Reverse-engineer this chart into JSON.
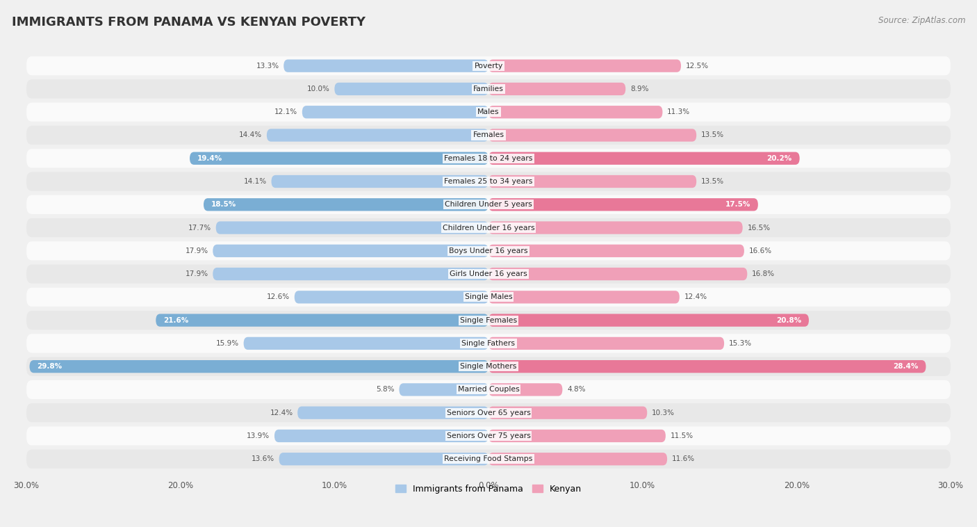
{
  "title": "IMMIGRANTS FROM PANAMA VS KENYAN POVERTY",
  "source": "Source: ZipAtlas.com",
  "categories": [
    "Poverty",
    "Families",
    "Males",
    "Females",
    "Females 18 to 24 years",
    "Females 25 to 34 years",
    "Children Under 5 years",
    "Children Under 16 years",
    "Boys Under 16 years",
    "Girls Under 16 years",
    "Single Males",
    "Single Females",
    "Single Fathers",
    "Single Mothers",
    "Married Couples",
    "Seniors Over 65 years",
    "Seniors Over 75 years",
    "Receiving Food Stamps"
  ],
  "panama_values": [
    13.3,
    10.0,
    12.1,
    14.4,
    19.4,
    14.1,
    18.5,
    17.7,
    17.9,
    17.9,
    12.6,
    21.6,
    15.9,
    29.8,
    5.8,
    12.4,
    13.9,
    13.6
  ],
  "kenyan_values": [
    12.5,
    8.9,
    11.3,
    13.5,
    20.2,
    13.5,
    17.5,
    16.5,
    16.6,
    16.8,
    12.4,
    20.8,
    15.3,
    28.4,
    4.8,
    10.3,
    11.5,
    11.6
  ],
  "panama_color": "#a8c8e8",
  "kenyan_color": "#f0a0b8",
  "panama_highlight_color": "#7aaed4",
  "kenyan_highlight_color": "#e87898",
  "highlight_rows": [
    4,
    6,
    11,
    13
  ],
  "background_color": "#f0f0f0",
  "row_bg_light": "#fafafa",
  "row_bg_dark": "#e8e8e8",
  "max_value": 30.0,
  "legend_panama": "Immigrants from Panama",
  "legend_kenyan": "Kenyan"
}
